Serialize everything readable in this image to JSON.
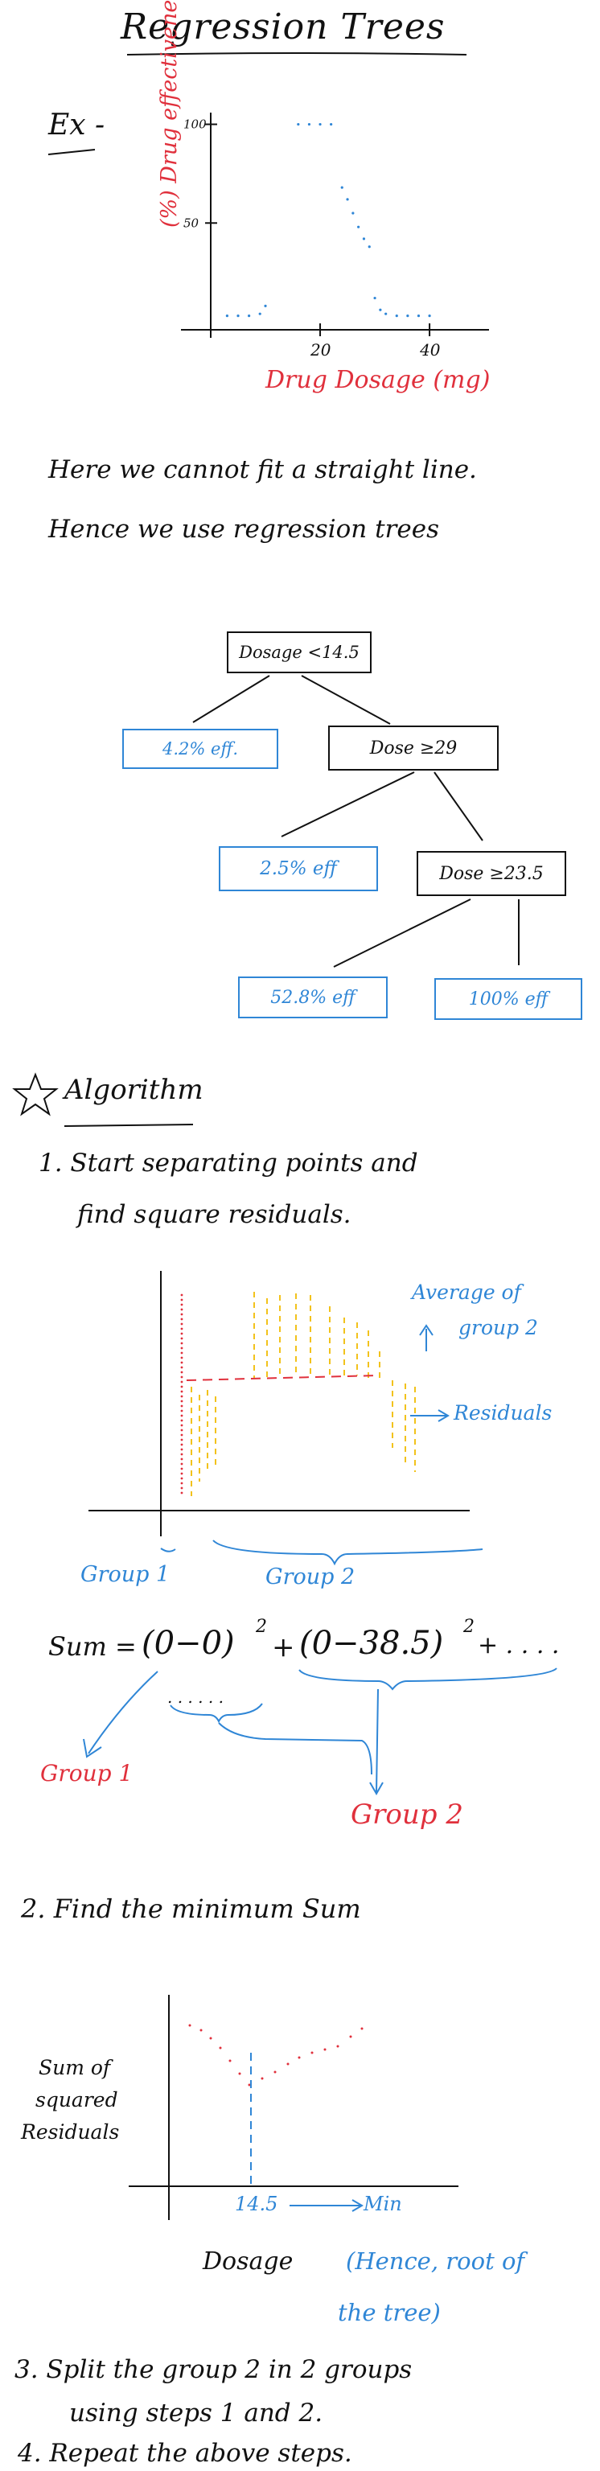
{
  "title": "Regression Trees",
  "example_label": "Ex -",
  "chart1": {
    "ylabel": "(%) Drug effectiveness",
    "xlabel": "Drug Dosage (mg)",
    "yticks": [
      "100",
      "50"
    ],
    "xticks": [
      "20",
      "40"
    ]
  },
  "chart_data": {
    "type": "scatter",
    "xlabel": "Drug Dosage (mg)",
    "ylabel": "(%) Drug effectiveness",
    "x_ticks": [
      20,
      40
    ],
    "y_ticks": [
      50,
      100
    ],
    "xlim": [
      0,
      50
    ],
    "ylim": [
      0,
      110
    ],
    "x": [
      3,
      5,
      7,
      9,
      10,
      16,
      18,
      20,
      22,
      24,
      25,
      26,
      27,
      28,
      29,
      30,
      31,
      32,
      34,
      36,
      38,
      40
    ],
    "y": [
      3,
      3,
      3,
      4,
      8,
      100,
      100,
      100,
      100,
      68,
      62,
      55,
      48,
      42,
      38,
      12,
      6,
      4,
      3,
      3,
      3,
      3
    ]
  },
  "note_line1": "Here we cannot fit a straight line.",
  "note_line2": "Hence we use regression trees",
  "tree": {
    "root": "Dosage <14.5",
    "left_leaf": "4.2% eff.",
    "right_node": "Dose ≥29",
    "rl_leaf": "2.5% eff",
    "rr_node": "Dose ≥23.5",
    "rrl_leaf": "52.8% eff",
    "rrr_leaf": "100% eff"
  },
  "algorithm_heading": "Algorithm",
  "star_icon": "star-outline-icon",
  "step1_line1": "1. Start separating points and",
  "step1_line2": "find square residuals.",
  "chart2": {
    "avg_label_line1": "Average of",
    "avg_label_line2": "group 2",
    "residuals_label": "Residuals",
    "group1_label": "Group 1",
    "group2_label": "Group 2"
  },
  "formula": {
    "lhs": "Sum =",
    "term1": "(0−0)",
    "term2": "(0−38.5)",
    "plus": "+",
    "exp": "2",
    "tail": "+ . . . .",
    "dots": ". . . . . .",
    "group1": "Group 1",
    "group2": "Group 2"
  },
  "step2": "2. Find the minimum Sum",
  "chart3": {
    "ylabel_line1": "Sum of",
    "ylabel_line2": "squared",
    "ylabel_line3": "Residuals",
    "min_value": "14.5",
    "min_label": "Min",
    "xlabel": "Dosage",
    "note_line1": "(Hence, root of",
    "note_line2": "the tree)"
  },
  "step3_line1": "3. Split the group 2 in 2 groups",
  "step3_line2": "using steps 1 and 2.",
  "step4": "4. Repeat the above steps."
}
